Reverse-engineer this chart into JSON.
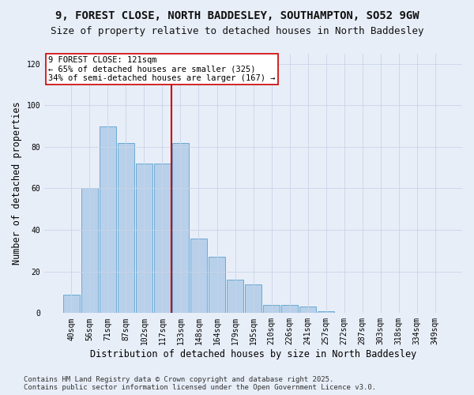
{
  "title_line1": "9, FOREST CLOSE, NORTH BADDESLEY, SOUTHAMPTON, SO52 9GW",
  "title_line2": "Size of property relative to detached houses in North Baddesley",
  "xlabel": "Distribution of detached houses by size in North Baddesley",
  "ylabel": "Number of detached properties",
  "categories": [
    "40sqm",
    "56sqm",
    "71sqm",
    "87sqm",
    "102sqm",
    "117sqm",
    "133sqm",
    "148sqm",
    "164sqm",
    "179sqm",
    "195sqm",
    "210sqm",
    "226sqm",
    "241sqm",
    "257sqm",
    "272sqm",
    "287sqm",
    "303sqm",
    "318sqm",
    "334sqm",
    "349sqm"
  ],
  "values": [
    9,
    60,
    90,
    82,
    72,
    72,
    82,
    36,
    27,
    16,
    14,
    4,
    4,
    3,
    1,
    0,
    0,
    0,
    0,
    0,
    0
  ],
  "bar_color": "#b8d0ea",
  "bar_edge_color": "#6aaad4",
  "vline_x_idx": 6,
  "vline_color": "#cc0000",
  "annotation_text": "9 FOREST CLOSE: 121sqm\n← 65% of detached houses are smaller (325)\n34% of semi-detached houses are larger (167) →",
  "annotation_box_color": "#ffffff",
  "annotation_box_edge_color": "#cc0000",
  "ylim": [
    0,
    125
  ],
  "yticks": [
    0,
    20,
    40,
    60,
    80,
    100,
    120
  ],
  "bg_color": "#e8eef8",
  "plot_bg_color": "#e8eef8",
  "footer_line1": "Contains HM Land Registry data © Crown copyright and database right 2025.",
  "footer_line2": "Contains public sector information licensed under the Open Government Licence v3.0.",
  "title_fontsize": 10,
  "subtitle_fontsize": 9,
  "tick_fontsize": 7,
  "xlabel_fontsize": 8.5,
  "ylabel_fontsize": 8.5,
  "footer_fontsize": 6.5
}
